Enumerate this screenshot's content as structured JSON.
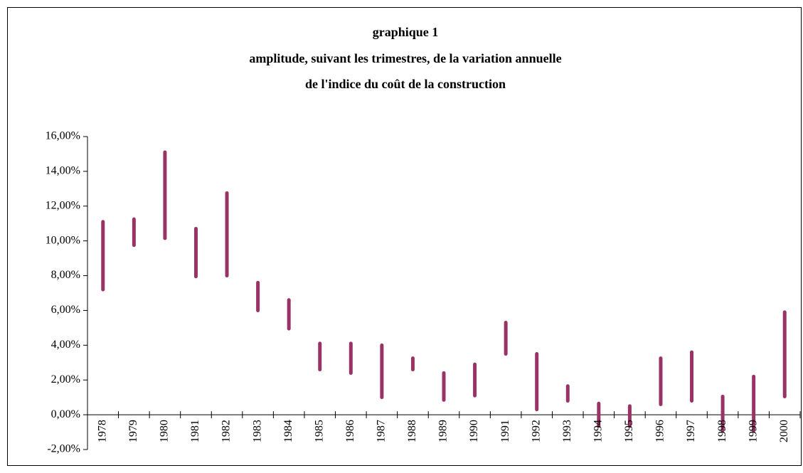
{
  "chart_data": {
    "type": "range",
    "title": [
      "graphique 1",
      "amplitude, suivant les trimestres, de la variation annuelle",
      "de l'indice du coût de la construction"
    ],
    "categories": [
      "1978",
      "1979",
      "1980",
      "1981",
      "1982",
      "1983",
      "1984",
      "1985",
      "1986",
      "1987",
      "1988",
      "1989",
      "1990",
      "1991",
      "1992",
      "1993",
      "1994",
      "1995",
      "1996",
      "1997",
      "1998",
      "1999",
      "2000"
    ],
    "low": [
      7.2,
      9.75,
      10.15,
      7.95,
      8.0,
      6.0,
      4.95,
      2.6,
      2.4,
      1.0,
      2.6,
      0.85,
      1.1,
      3.5,
      0.3,
      0.8,
      -0.65,
      -0.65,
      0.6,
      0.8,
      -0.9,
      -0.9,
      1.05
    ],
    "high": [
      11.1,
      11.25,
      15.1,
      10.7,
      12.75,
      7.6,
      6.6,
      4.1,
      4.1,
      4.0,
      3.25,
      2.4,
      2.9,
      5.3,
      3.5,
      1.65,
      0.65,
      0.5,
      3.25,
      3.6,
      1.05,
      2.2,
      5.9
    ],
    "color": "#993366",
    "ylim": [
      -2,
      16
    ],
    "yticks": [
      {
        "value": -2,
        "label": "-2,00%"
      },
      {
        "value": 0,
        "label": "0,00%"
      },
      {
        "value": 2,
        "label": "2,00%"
      },
      {
        "value": 4,
        "label": "4,00%"
      },
      {
        "value": 6,
        "label": "6,00%"
      },
      {
        "value": 8,
        "label": "8,00%"
      },
      {
        "value": 10,
        "label": "10,00%"
      },
      {
        "value": 12,
        "label": "12,00%"
      },
      {
        "value": 14,
        "label": "14,00%"
      },
      {
        "value": 16,
        "label": "16,00%"
      }
    ],
    "grid": false
  }
}
